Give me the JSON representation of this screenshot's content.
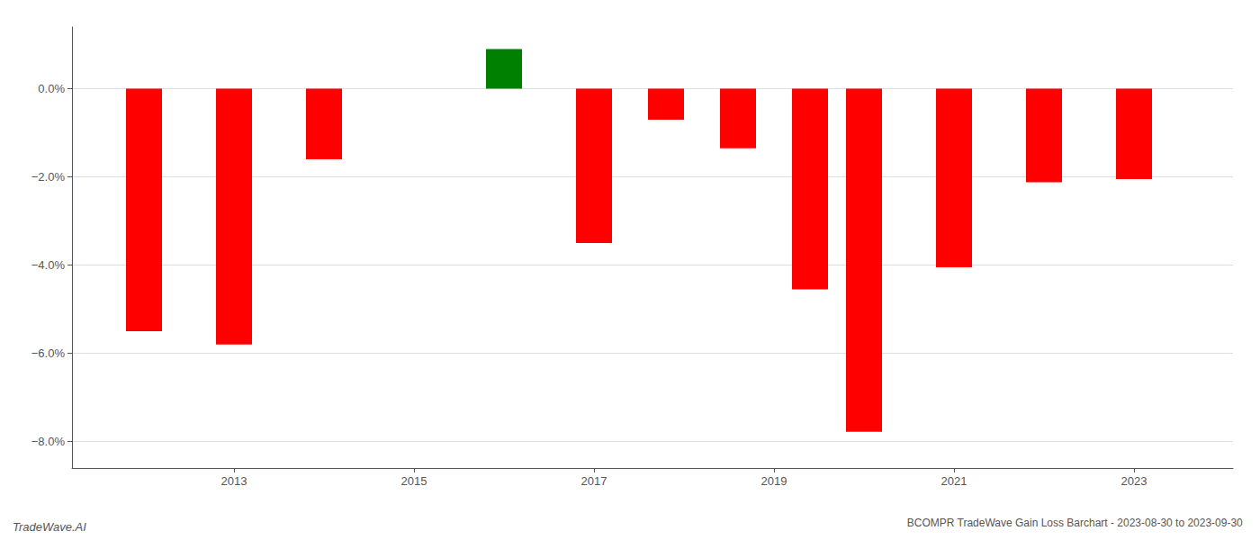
{
  "chart_data": {
    "type": "bar",
    "title": "BCOMPR TradeWave Gain Loss Barchart - 2023-08-30 to 2023-09-30",
    "annotations": [
      "TradeWave.AI"
    ],
    "x": [
      2012.0,
      2013.0,
      2014.0,
      2016.0,
      2017.0,
      2017.8,
      2018.6,
      2019.4,
      2020.0,
      2021.0,
      2022.0,
      2023.0
    ],
    "values": [
      -5.5,
      -5.8,
      -1.6,
      0.9,
      -3.5,
      -0.7,
      -1.35,
      -4.55,
      -7.78,
      -4.05,
      -2.12,
      -2.05
    ],
    "colors": [
      "#ff0000",
      "#ff0000",
      "#ff0000",
      "#008000",
      "#ff0000",
      "#ff0000",
      "#ff0000",
      "#ff0000",
      "#ff0000",
      "#ff0000",
      "#ff0000",
      "#ff0000"
    ],
    "xlim": [
      2011.2,
      2024.1
    ],
    "xticks": [
      2013,
      2015,
      2017,
      2019,
      2021,
      2023
    ],
    "ylim": [
      -8.6,
      1.4
    ],
    "yticks": [
      {
        "value": 0.0,
        "label": "0.0%"
      },
      {
        "value": -2.0,
        "label": "−2.0%"
      },
      {
        "value": -4.0,
        "label": "−4.0%"
      },
      {
        "value": -6.0,
        "label": "−6.0%"
      },
      {
        "value": -8.0,
        "label": "−8.0%"
      }
    ],
    "grid": true
  }
}
